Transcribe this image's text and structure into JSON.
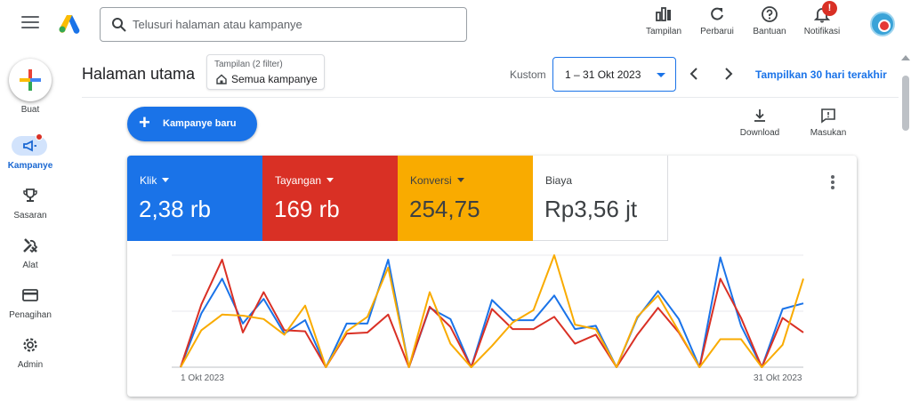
{
  "header": {
    "search_placeholder": "Telusuri halaman atau kampanye",
    "buttons": [
      {
        "icon": "bar-chart-icon",
        "label": "Tampilan"
      },
      {
        "icon": "refresh-icon",
        "label": "Perbarui"
      },
      {
        "icon": "help-icon",
        "label": "Bantuan"
      },
      {
        "icon": "bell-icon",
        "label": "Notifikasi"
      }
    ],
    "notification_badge": "!"
  },
  "leftnav": {
    "create_label": "Buat",
    "items": [
      {
        "icon": "megaphone-icon",
        "label": "Kampanye",
        "active": true
      },
      {
        "icon": "trophy-icon",
        "label": "Sasaran"
      },
      {
        "icon": "tools-icon",
        "label": "Alat"
      },
      {
        "icon": "credit-card-icon",
        "label": "Penagihan"
      },
      {
        "icon": "gear-icon",
        "label": "Admin"
      }
    ]
  },
  "page": {
    "title": "Halaman utama",
    "view_filter_label": "Tampilan (2 filter)",
    "view_filter_value": "Semua kampanye",
    "date_mode": "Kustom",
    "date_range": "1 – 31 Okt 2023",
    "show_last_30": "Tampilkan 30 hari terakhir",
    "new_campaign": "Kampanye baru",
    "download": "Download",
    "feedback": "Masukan"
  },
  "metrics": [
    {
      "label": "Klik",
      "value": "2,38 rb",
      "color": "#1a73e8",
      "text_color": "#ffffff",
      "dropdown": true
    },
    {
      "label": "Tayangan",
      "value": "169 rb",
      "color": "#d93025",
      "text_color": "#ffffff",
      "dropdown": true
    },
    {
      "label": "Konversi",
      "value": "254,75",
      "color": "#f9ab00",
      "text_color": "#3c4043",
      "dropdown": true
    },
    {
      "label": "Biaya",
      "value": "Rp3,56 jt",
      "color": "#ffffff",
      "text_color": "#3c4043",
      "dropdown": false
    }
  ],
  "chart_data": {
    "type": "line",
    "x_start_label": "1 Okt 2023",
    "x_end_label": "31 Okt 2023",
    "x": [
      1,
      2,
      3,
      4,
      5,
      6,
      7,
      8,
      9,
      10,
      11,
      12,
      13,
      14,
      15,
      16,
      17,
      18,
      19,
      20,
      21,
      22,
      23,
      24,
      25,
      26,
      27,
      28,
      29,
      30,
      31
    ],
    "grid": true,
    "series": [
      {
        "color": "#1a73e8",
        "values": [
          0,
          48,
          79,
          39,
          61,
          30,
          42,
          0,
          39,
          39,
          96,
          0,
          53,
          43,
          0,
          60,
          42,
          42,
          64,
          34,
          37,
          0,
          44,
          68,
          43,
          0,
          98,
          37,
          0,
          52,
          57
        ]
      },
      {
        "color": "#d93025",
        "values": [
          0,
          56,
          96,
          31,
          67,
          33,
          32,
          0,
          30,
          31,
          47,
          0,
          54,
          36,
          0,
          52,
          34,
          34,
          45,
          21,
          29,
          0,
          29,
          53,
          31,
          0,
          79,
          44,
          0,
          44,
          31
        ]
      },
      {
        "color": "#f9ab00",
        "values": [
          0,
          33,
          47,
          46,
          43,
          29,
          55,
          0,
          32,
          45,
          89,
          0,
          67,
          21,
          0,
          19,
          40,
          51,
          100,
          38,
          34,
          0,
          45,
          64,
          32,
          0,
          25,
          25,
          0,
          20,
          79
        ]
      }
    ]
  }
}
